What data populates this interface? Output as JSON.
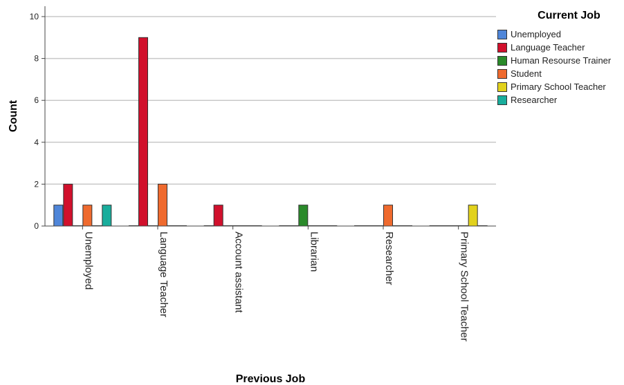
{
  "chart_data": {
    "type": "bar",
    "xlabel": "Previous Job",
    "ylabel": "Count",
    "ylim": [
      0,
      10
    ],
    "yticks": [
      0,
      2,
      4,
      6,
      8,
      10
    ],
    "grid": true,
    "legend_title": "Current Job",
    "legend_position": "top-right",
    "categories": [
      "Unemployed",
      "Language Teacher",
      "Account assistant",
      "Librarian",
      "Researcher",
      "Primary School Teacher"
    ],
    "series": [
      {
        "name": "Unemployed",
        "color": "#4f86d9",
        "values": [
          1,
          0,
          0,
          0,
          0,
          0
        ]
      },
      {
        "name": "Language Teacher",
        "color": "#d1102c",
        "values": [
          2,
          9,
          1,
          0,
          0,
          0
        ]
      },
      {
        "name": "Human Resourse Trainer",
        "color": "#2a8a2a",
        "values": [
          0,
          0,
          0,
          1,
          0,
          0
        ]
      },
      {
        "name": "Student",
        "color": "#ef6a2e",
        "values": [
          1,
          2,
          0,
          0,
          1,
          0
        ]
      },
      {
        "name": "Primary School Teacher",
        "color": "#e2d21c",
        "values": [
          0,
          0,
          0,
          0,
          0,
          1
        ]
      },
      {
        "name": "Researcher",
        "color": "#19ad9c",
        "values": [
          1,
          0,
          0,
          0,
          0,
          0
        ]
      }
    ]
  }
}
